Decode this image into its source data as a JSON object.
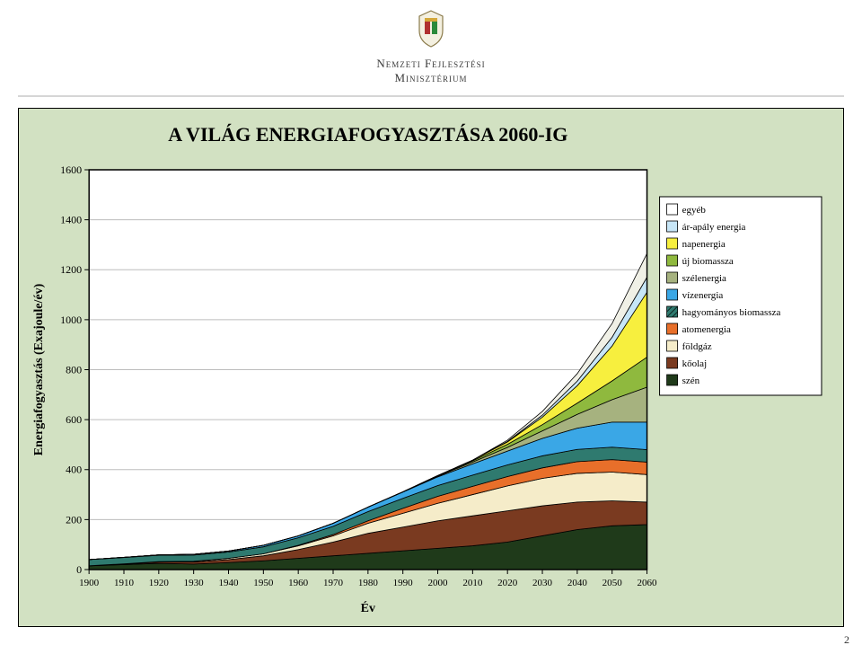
{
  "header": {
    "ministry_line1": "Nemzeti Fejlesztési",
    "ministry_line2": "Minisztérium"
  },
  "page_number": "2",
  "chart": {
    "type": "area",
    "title": "A VILÁG ENERGIAFOGYASZTÁSA 2060-IG",
    "title_fontsize": 22,
    "title_weight": "bold",
    "background": "#d2e1c2",
    "plot_bg": "#ffffff",
    "grid_color": "#bdbdbd",
    "axis_color": "#000000",
    "x": {
      "label": "Év",
      "ticks": [
        1900,
        1910,
        1920,
        1930,
        1940,
        1950,
        1960,
        1970,
        1980,
        1990,
        2000,
        2010,
        2020,
        2030,
        2040,
        2050,
        2060
      ]
    },
    "y": {
      "label": "Energiafogyasztás (Exajoule/év)",
      "ticks": [
        0,
        200,
        400,
        600,
        800,
        1000,
        1200,
        1400,
        1600
      ],
      "lim": [
        0,
        1600
      ]
    },
    "series": [
      {
        "key": "szen",
        "label": "szén",
        "color": "#1f3a1a",
        "edge": "#000",
        "legend_box": "#1f3a1a"
      },
      {
        "key": "koolaj",
        "label": "kőolaj",
        "color": "#7a3a20",
        "edge": "#000",
        "legend_box": "#7a3a20"
      },
      {
        "key": "foldgaz",
        "label": "földgáz",
        "color": "#f5ecc9",
        "edge": "#000",
        "legend_box": "#f5ecc9"
      },
      {
        "key": "atom",
        "label": "atomenergia",
        "color": "#e86f2a",
        "edge": "#000",
        "legend_box": "#e86f2a"
      },
      {
        "key": "hagybio",
        "label": "hagyományos biomassza",
        "color": "#2f7a6f",
        "edge": "#000",
        "legend_box": "#2f7a6f",
        "legend_hatch": true
      },
      {
        "key": "viz",
        "label": "vízenergia",
        "color": "#3aa7e6",
        "edge": "#000",
        "legend_box": "#3aa7e6"
      },
      {
        "key": "szel",
        "label": "szélenergia",
        "color": "#a6b27f",
        "edge": "#000",
        "legend_box": "#a6b27f"
      },
      {
        "key": "ujbio",
        "label": "új biomassza",
        "color": "#8fb93e",
        "edge": "#000",
        "legend_box": "#8fb93e"
      },
      {
        "key": "nap",
        "label": "napenergia",
        "color": "#f7ef3e",
        "edge": "#000",
        "legend_box": "#f7ef3e"
      },
      {
        "key": "arapaly",
        "label": "ár-apály energia",
        "color": "#c7e6f7",
        "edge": "#000",
        "legend_box": "#c7e6f7"
      },
      {
        "key": "egyeb",
        "label": "egyéb",
        "color": "#f0f0e6",
        "edge": "#000",
        "legend_box": "#ffffff"
      }
    ],
    "years": [
      1900,
      1910,
      1920,
      1930,
      1940,
      1950,
      1960,
      1970,
      1980,
      1990,
      2000,
      2010,
      2020,
      2030,
      2040,
      2050,
      2060
    ],
    "values": {
      "szen": [
        15,
        20,
        25,
        22,
        28,
        35,
        45,
        55,
        65,
        75,
        85,
        95,
        110,
        135,
        160,
        175,
        180
      ],
      "koolaj": [
        0,
        2,
        5,
        8,
        12,
        20,
        35,
        55,
        80,
        95,
        110,
        120,
        125,
        120,
        110,
        100,
        90
      ],
      "foldgaz": [
        0,
        1,
        2,
        3,
        5,
        8,
        15,
        25,
        40,
        55,
        70,
        85,
        100,
        110,
        115,
        115,
        110
      ],
      "atom": [
        0,
        0,
        0,
        0,
        0,
        0,
        2,
        5,
        10,
        20,
        28,
        33,
        37,
        42,
        47,
        50,
        50
      ],
      "hagybio": [
        25,
        25,
        25,
        25,
        25,
        28,
        30,
        33,
        37,
        40,
        43,
        45,
        47,
        48,
        49,
        50,
        50
      ],
      "viz": [
        0,
        1,
        2,
        3,
        4,
        6,
        8,
        12,
        18,
        25,
        35,
        45,
        55,
        70,
        85,
        100,
        110
      ],
      "szel": [
        0,
        0,
        0,
        0,
        0,
        0,
        0,
        0,
        0,
        1,
        3,
        7,
        15,
        30,
        55,
        90,
        140
      ],
      "ujbio": [
        0,
        0,
        0,
        0,
        0,
        0,
        0,
        0,
        0,
        0,
        2,
        5,
        12,
        25,
        45,
        75,
        120
      ],
      "nap": [
        0,
        0,
        0,
        0,
        0,
        0,
        0,
        0,
        0,
        0,
        0,
        3,
        10,
        30,
        70,
        140,
        260
      ],
      "arapaly": [
        0,
        0,
        0,
        0,
        0,
        0,
        0,
        0,
        0,
        0,
        0,
        0,
        2,
        8,
        18,
        35,
        60
      ],
      "egyeb": [
        0,
        0,
        0,
        0,
        0,
        0,
        0,
        0,
        0,
        0,
        0,
        0,
        5,
        15,
        30,
        55,
        95
      ]
    },
    "legend": {
      "order": [
        "egyeb",
        "arapaly",
        "nap",
        "ujbio",
        "szel",
        "viz",
        "hagybio",
        "atom",
        "foldgaz",
        "koolaj",
        "szen"
      ],
      "bg": "#ffffff",
      "border": "#000000",
      "font_size": 11
    }
  }
}
